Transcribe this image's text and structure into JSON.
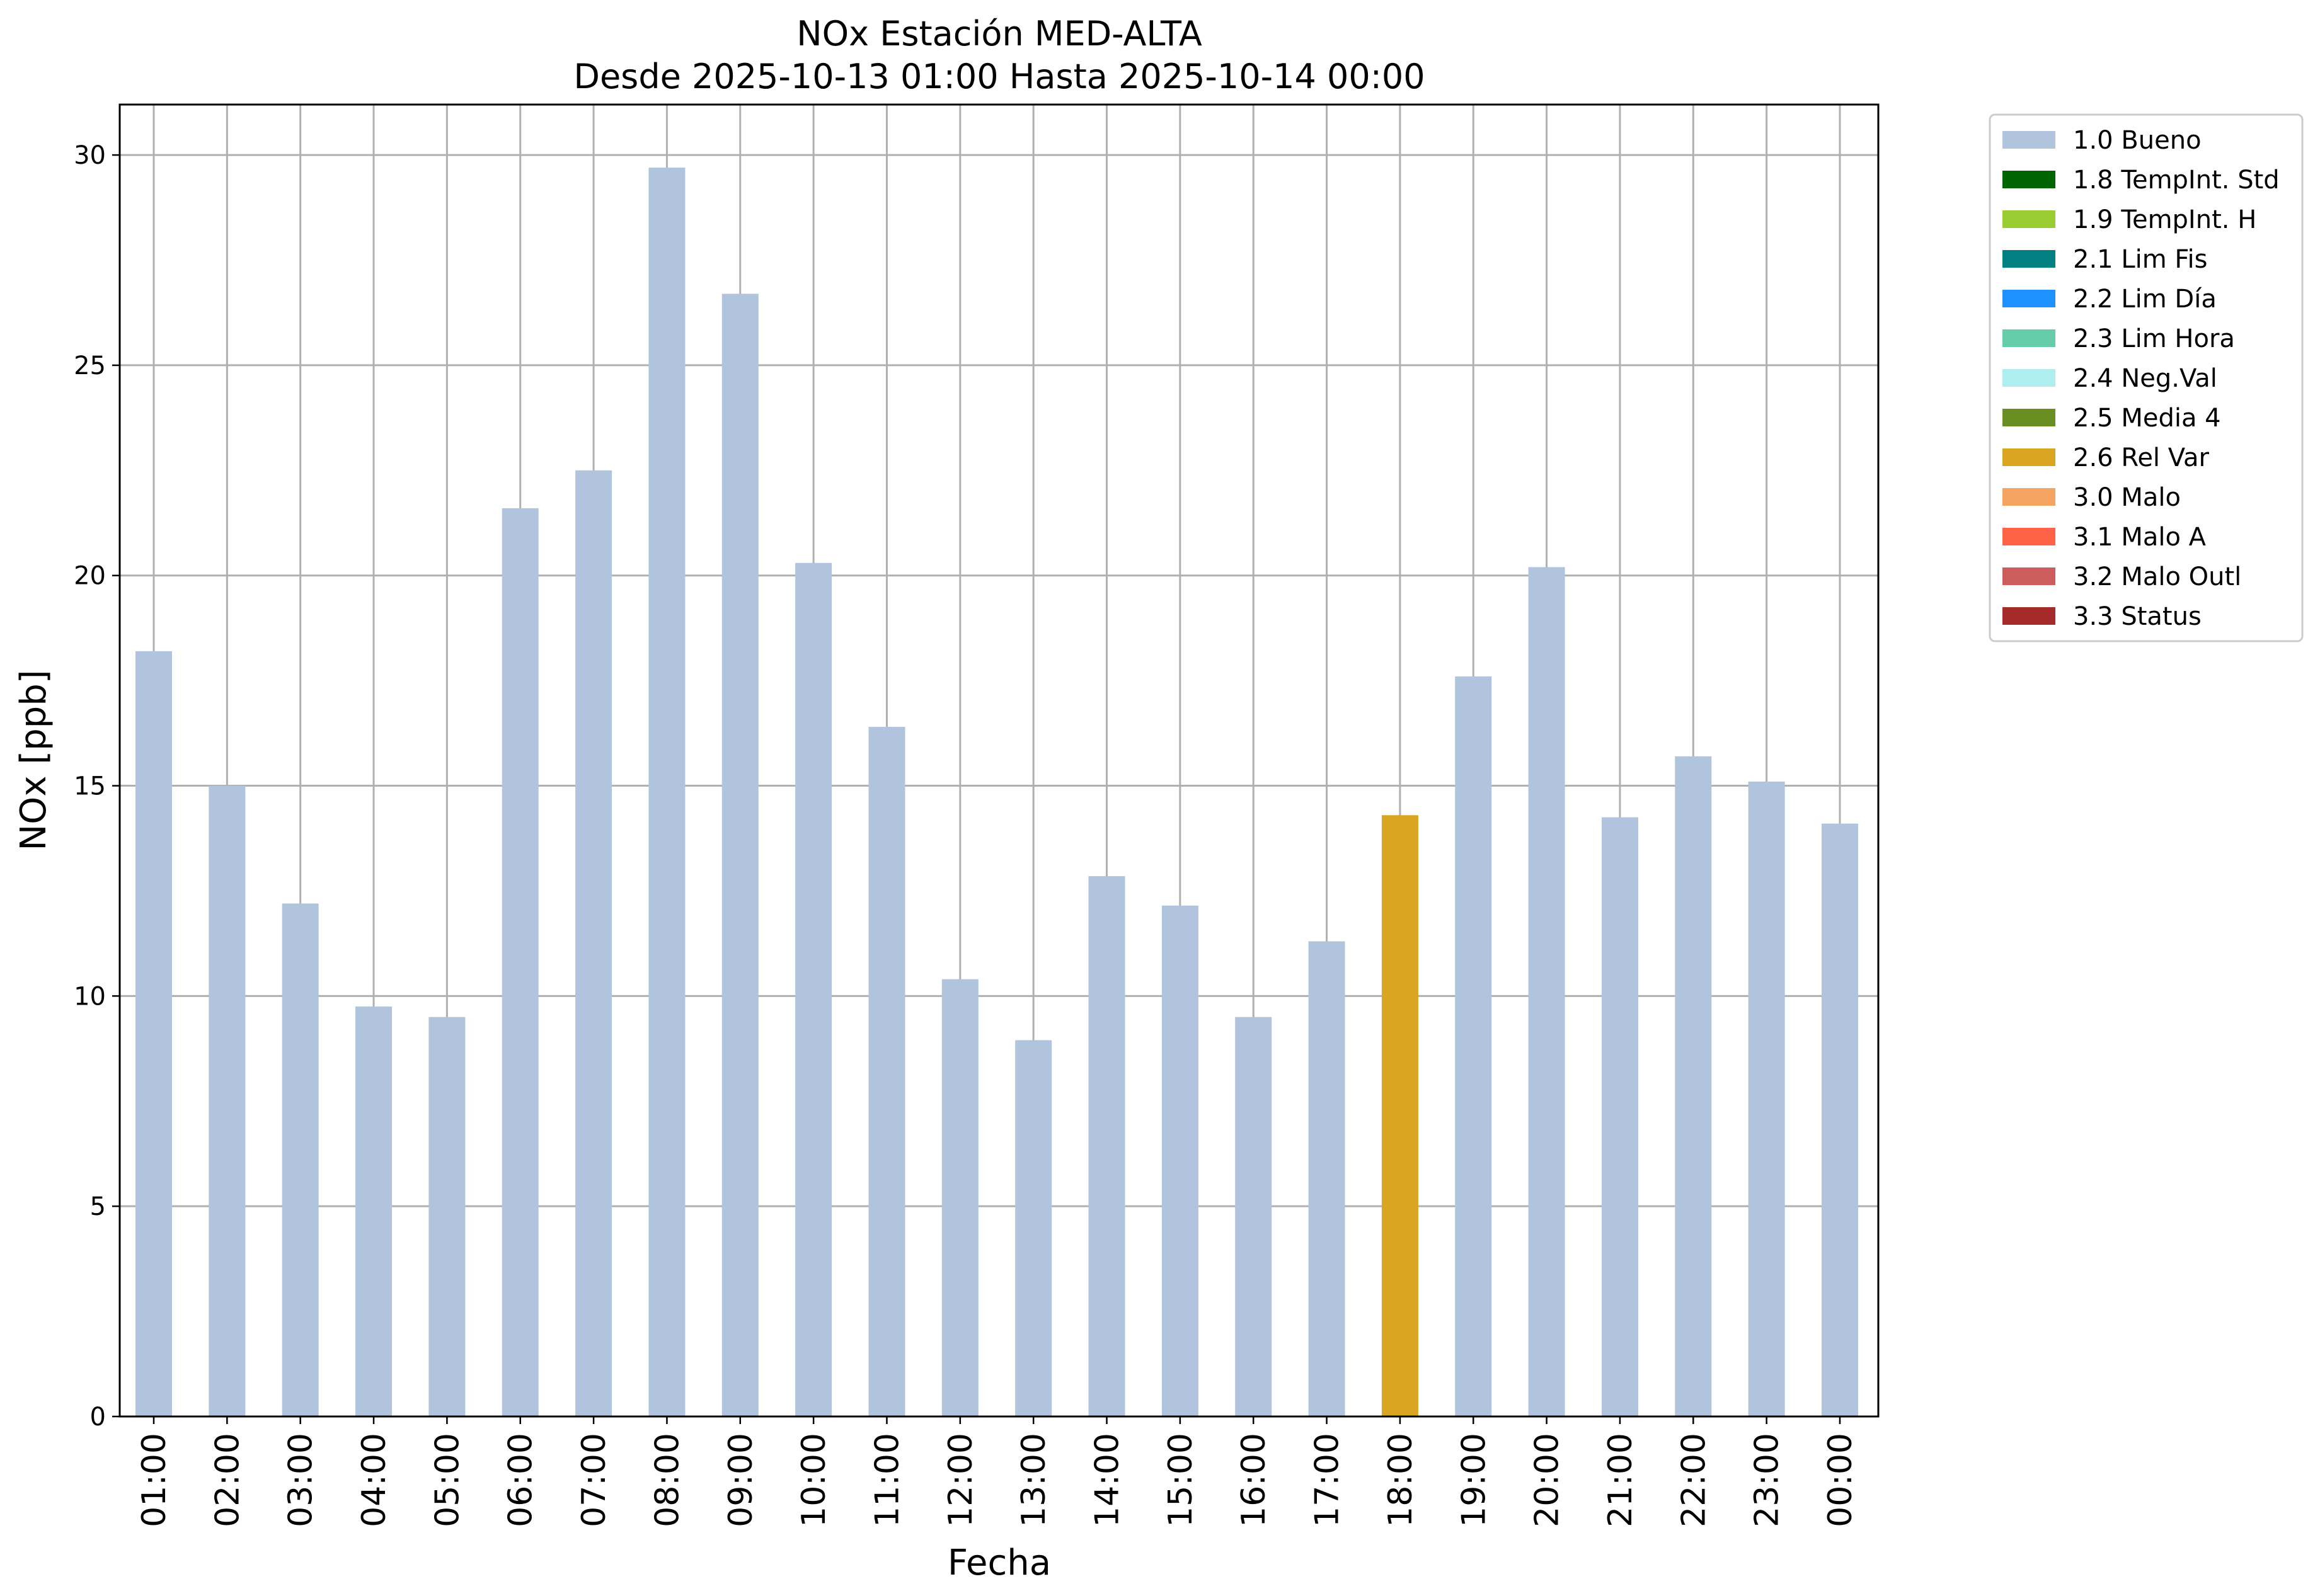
{
  "chart_data": {
    "type": "bar",
    "title": "NOx Estación MED-ALTA",
    "subtitle": "Desde 2025-10-13 01:00 Hasta 2025-10-14 00:00",
    "xlabel": "Fecha",
    "ylabel": "NOx [ppb]",
    "ylim": [
      0,
      31.2
    ],
    "yticks": [
      "0",
      "5",
      "10",
      "15",
      "20",
      "25",
      "30"
    ],
    "grid": true,
    "legend_position": "outside-top-right",
    "categories": [
      "01:00",
      "02:00",
      "03:00",
      "04:00",
      "05:00",
      "06:00",
      "07:00",
      "08:00",
      "09:00",
      "10:00",
      "11:00",
      "12:00",
      "13:00",
      "14:00",
      "15:00",
      "16:00",
      "17:00",
      "18:00",
      "19:00",
      "20:00",
      "21:00",
      "22:00",
      "23:00",
      "00:00"
    ],
    "values": [
      18.2,
      15.0,
      12.2,
      9.75,
      9.5,
      21.6,
      22.5,
      29.7,
      26.7,
      20.3,
      16.4,
      10.4,
      8.95,
      12.85,
      12.15,
      9.5,
      11.3,
      14.3,
      17.6,
      20.2,
      14.25,
      15.7,
      15.1,
      14.1
    ],
    "flags": [
      "1.0 Bueno",
      "1.0 Bueno",
      "1.0 Bueno",
      "1.0 Bueno",
      "1.0 Bueno",
      "1.0 Bueno",
      "1.0 Bueno",
      "1.0 Bueno",
      "1.0 Bueno",
      "1.0 Bueno",
      "1.0 Bueno",
      "1.0 Bueno",
      "1.0 Bueno",
      "1.0 Bueno",
      "1.0 Bueno",
      "1.0 Bueno",
      "1.0 Bueno",
      "2.6 Rel Var",
      "1.0 Bueno",
      "1.0 Bueno",
      "1.0 Bueno",
      "1.0 Bueno",
      "1.0 Bueno",
      "1.0 Bueno"
    ],
    "legend": [
      {
        "name": "1.0 Bueno",
        "color": "#b0c4de"
      },
      {
        "name": "1.8 TempInt. Std",
        "color": "#006400"
      },
      {
        "name": "1.9 TempInt. H",
        "color": "#9acd32"
      },
      {
        "name": "2.1 Lim Fis",
        "color": "#008080"
      },
      {
        "name": "2.2 Lim Día",
        "color": "#1e90ff"
      },
      {
        "name": "2.3 Lim Hora",
        "color": "#66cdaa"
      },
      {
        "name": "2.4 Neg.Val",
        "color": "#afeeee"
      },
      {
        "name": "2.5 Media 4",
        "color": "#6b8e23"
      },
      {
        "name": "2.6 Rel Var",
        "color": "#daa520"
      },
      {
        "name": "3.0 Malo",
        "color": "#f4a460"
      },
      {
        "name": "3.1 Malo A",
        "color": "#ff6347"
      },
      {
        "name": "3.2 Malo Outl",
        "color": "#cd5c5c"
      },
      {
        "name": "3.3 Status",
        "color": "#a52a2a"
      }
    ]
  }
}
